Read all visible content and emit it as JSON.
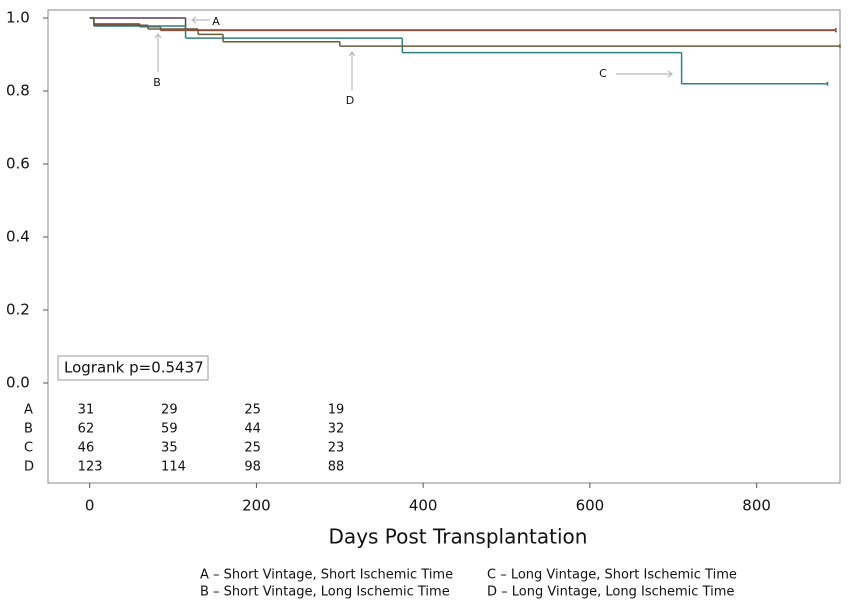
{
  "chart_data": {
    "type": "step",
    "xlabel": "Days Post Transplantation",
    "xlim": [
      -50,
      900
    ],
    "ylim": [
      0,
      1
    ],
    "xticks": [
      0,
      200,
      400,
      600,
      800
    ],
    "yticks": [
      {
        "value": 0,
        "label": "0.0"
      },
      {
        "value": 0.2,
        "label": "0.2"
      },
      {
        "value": 0.4,
        "label": "0.4"
      },
      {
        "value": 0.6,
        "label": "0.6"
      },
      {
        "value": 0.8,
        "label": "0.8"
      },
      {
        "value": 1,
        "label": "1.0"
      }
    ],
    "series": [
      {
        "name": "A",
        "color": "#5b3a5e",
        "x": [
          0,
          115,
          895
        ],
        "values": [
          1.0,
          0.967,
          0.967
        ],
        "at_risk": [
          31,
          29,
          25,
          19
        ]
      },
      {
        "name": "B",
        "color": "#9b4a3a",
        "x": [
          0,
          5,
          60,
          85,
          895
        ],
        "values": [
          1.0,
          0.984,
          0.976,
          0.966,
          0.966
        ],
        "at_risk": [
          62,
          59,
          44,
          32
        ]
      },
      {
        "name": "C",
        "color": "#2f7f80",
        "x": [
          0,
          5,
          115,
          375,
          710,
          885
        ],
        "values": [
          1.0,
          0.978,
          0.945,
          0.905,
          0.82,
          0.82
        ],
        "at_risk": [
          46,
          35,
          25,
          23
        ]
      },
      {
        "name": "D",
        "color": "#6b5a3a",
        "x": [
          0,
          5,
          70,
          130,
          160,
          300,
          900
        ],
        "values": [
          1.0,
          0.98,
          0.97,
          0.955,
          0.935,
          0.923,
          0.923
        ],
        "at_risk": [
          123,
          114,
          98,
          88
        ]
      }
    ],
    "logrank": "Logrank p=0.5437",
    "legend_entries": [
      "A – Short Vintage, Short Ischemic Time",
      "B – Short Vintage, Long Ischemic Time",
      "C – Long Vintage, Short Ischemic Time",
      "D – Long Vintage, Long Ischemic Time"
    ]
  }
}
